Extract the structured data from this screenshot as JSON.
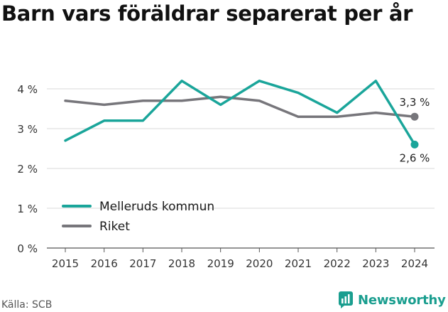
{
  "title": "Barn vars föräldrar separerat per år",
  "source": "Källa: SCB",
  "brand": "Newsworthy",
  "colors": {
    "melleruds": "#1aa59a",
    "riket": "#77767b",
    "grid": "#d9d9d9",
    "brand": "#1a9e8f"
  },
  "chart_data": {
    "type": "line",
    "title": "Barn vars föräldrar separerat per år",
    "x": [
      2015,
      2016,
      2017,
      2018,
      2019,
      2020,
      2021,
      2022,
      2023,
      2024
    ],
    "x_tick_labels": [
      "2015",
      "2016",
      "2017",
      "2018",
      "2019",
      "2020",
      "2021",
      "2022",
      "2023",
      "2024"
    ],
    "ylim": [
      0,
      4.6
    ],
    "y_ticks": [
      0,
      1,
      2,
      3,
      4
    ],
    "y_tick_labels": [
      "0 %",
      "1 %",
      "2 %",
      "3 %",
      "4 %"
    ],
    "grid": true,
    "legend_position": "lower-left",
    "series": [
      {
        "name": "Melleruds kommun",
        "color": "#1aa59a",
        "values": [
          2.7,
          3.2,
          3.2,
          4.2,
          3.6,
          4.2,
          3.9,
          3.4,
          4.2,
          2.6
        ],
        "end_label": "2,6 %",
        "end_label_position": "below"
      },
      {
        "name": "Riket",
        "color": "#77767b",
        "values": [
          3.7,
          3.6,
          3.7,
          3.7,
          3.8,
          3.7,
          3.3,
          3.3,
          3.4,
          3.3
        ],
        "end_label": "3,3 %",
        "end_label_position": "above"
      }
    ]
  }
}
